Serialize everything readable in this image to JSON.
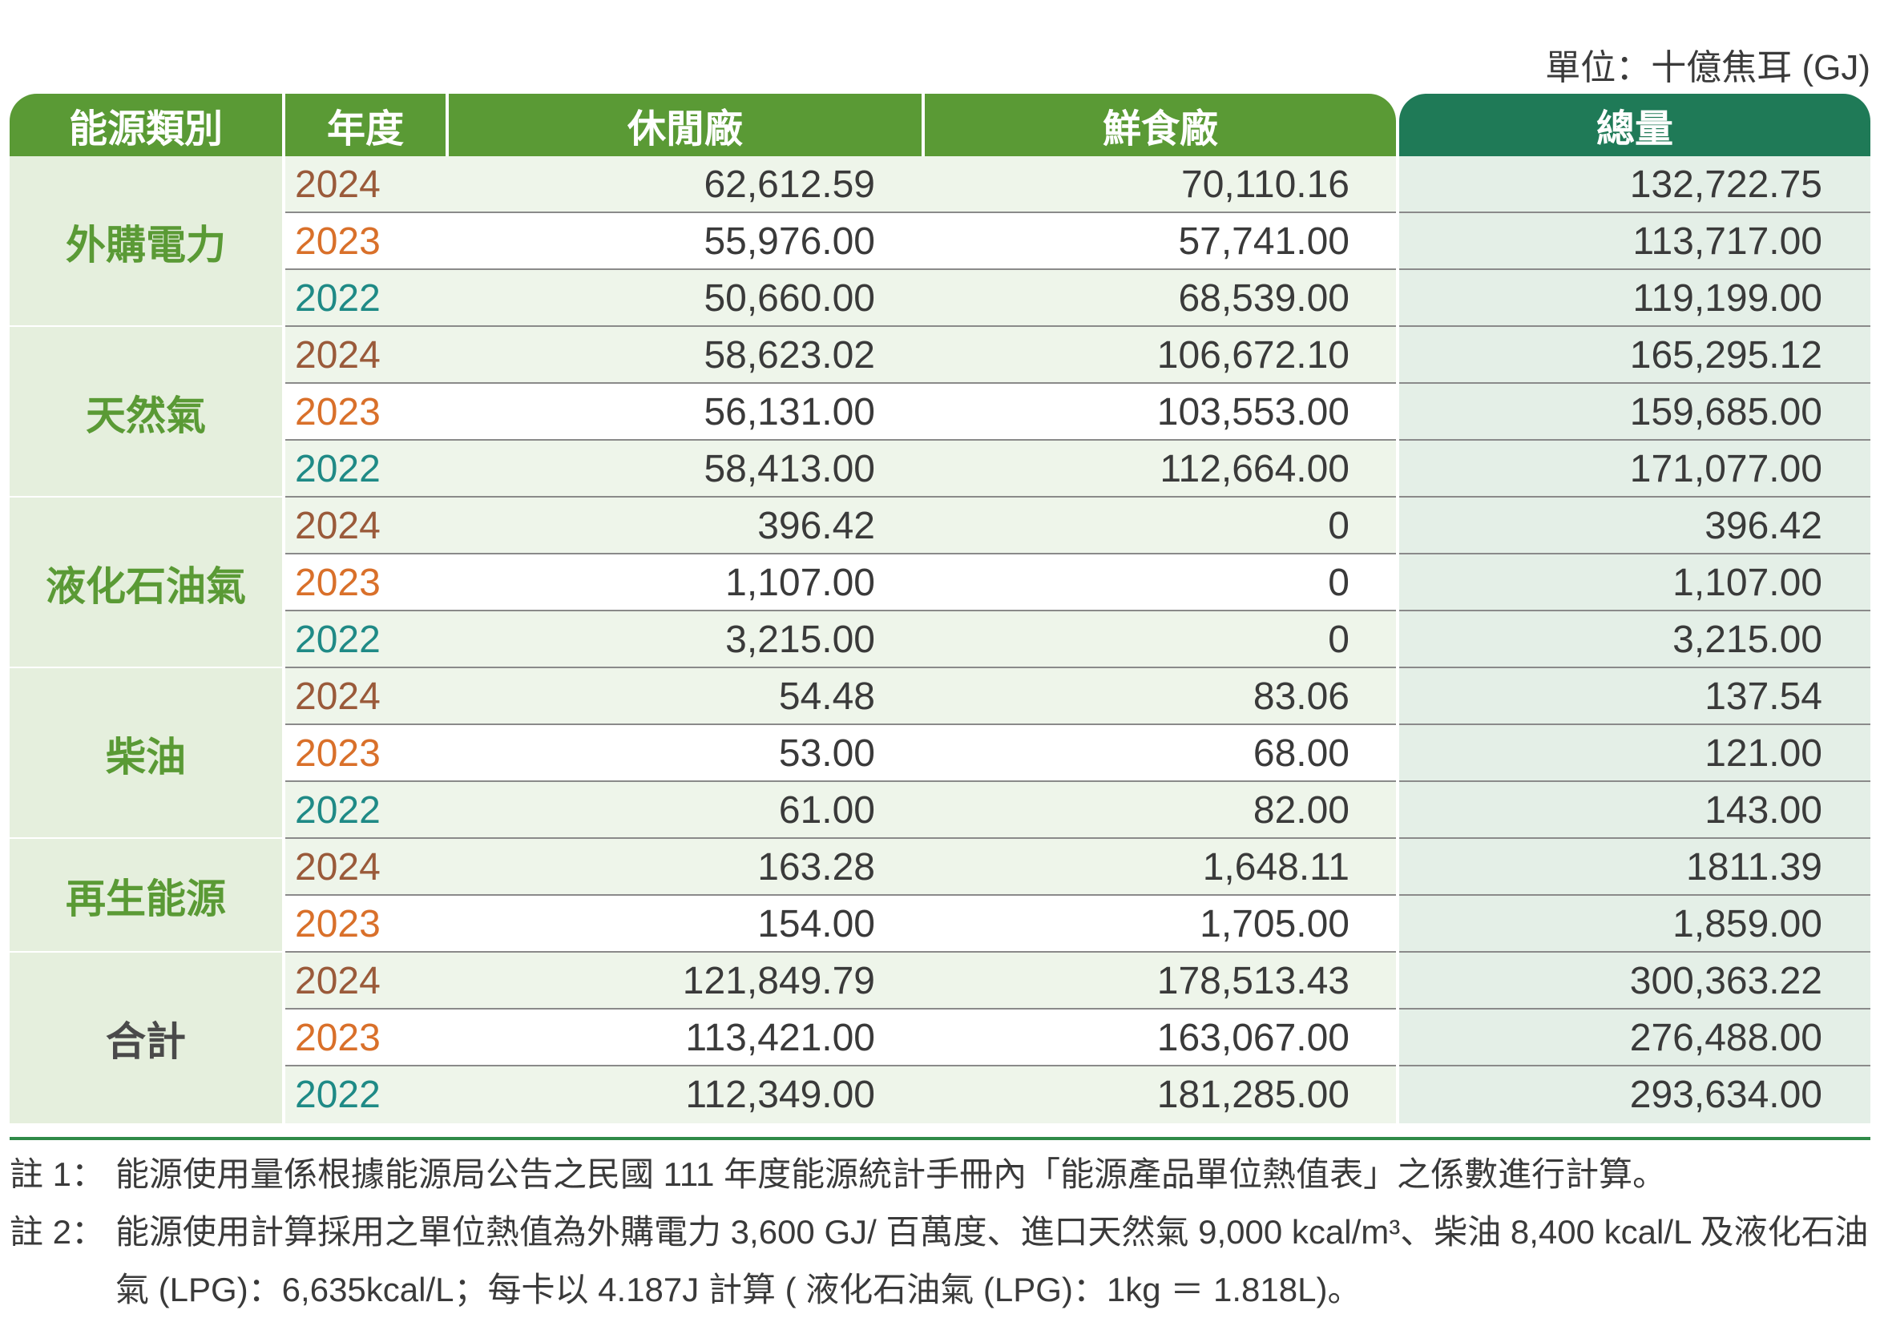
{
  "unit_label": "單位：十億焦耳 (GJ)",
  "headers": {
    "category": "能源類別",
    "year": "年度",
    "col_a": "休閒廠",
    "col_b": "鮮食廠",
    "total": "總量"
  },
  "groups": [
    {
      "category": "外購電力",
      "rows": [
        {
          "year": "2024",
          "a": "62,612.59",
          "b": "70,110.16",
          "total": "132,722.75"
        },
        {
          "year": "2023",
          "a": "55,976.00",
          "b": "57,741.00",
          "total": "113,717.00"
        },
        {
          "year": "2022",
          "a": "50,660.00",
          "b": "68,539.00",
          "total": "119,199.00"
        }
      ]
    },
    {
      "category": "天然氣",
      "rows": [
        {
          "year": "2024",
          "a": "58,623.02",
          "b": "106,672.10",
          "total": "165,295.12"
        },
        {
          "year": "2023",
          "a": "56,131.00",
          "b": "103,553.00",
          "total": "159,685.00"
        },
        {
          "year": "2022",
          "a": "58,413.00",
          "b": "112,664.00",
          "total": "171,077.00"
        }
      ]
    },
    {
      "category": "液化石油氣",
      "rows": [
        {
          "year": "2024",
          "a": "396.42",
          "b": "0",
          "total": "396.42"
        },
        {
          "year": "2023",
          "a": "1,107.00",
          "b": "0",
          "total": "1,107.00"
        },
        {
          "year": "2022",
          "a": "3,215.00",
          "b": "0",
          "total": "3,215.00"
        }
      ]
    },
    {
      "category": "柴油",
      "rows": [
        {
          "year": "2024",
          "a": "54.48",
          "b": "83.06",
          "total": "137.54"
        },
        {
          "year": "2023",
          "a": "53.00",
          "b": "68.00",
          "total": "121.00"
        },
        {
          "year": "2022",
          "a": "61.00",
          "b": "82.00",
          "total": "143.00"
        }
      ]
    },
    {
      "category": "再生能源",
      "rows": [
        {
          "year": "2024",
          "a": "163.28",
          "b": "1,648.11",
          "total": "1811.39"
        },
        {
          "year": "2023",
          "a": "154.00",
          "b": "1,705.00",
          "total": "1,859.00"
        }
      ]
    },
    {
      "category": "合計",
      "rows": [
        {
          "year": "2024",
          "a": "121,849.79",
          "b": "178,513.43",
          "total": "300,363.22"
        },
        {
          "year": "2023",
          "a": "113,421.00",
          "b": "163,067.00",
          "total": "276,488.00"
        },
        {
          "year": "2022",
          "a": "112,349.00",
          "b": "181,285.00",
          "total": "293,634.00"
        }
      ]
    }
  ],
  "notes": [
    {
      "label": "註 1：",
      "text": "能源使用量係根據能源局公告之民國 111 年度能源統計手冊內「能源產品單位熱值表」之係數進行計算。"
    },
    {
      "label": "註 2：",
      "text": "能源使用計算採用之單位熱值為外購電力 3,600 GJ/ 百萬度、進口天然氣 9,000 kcal/m³、柴油 8,400 kcal/L 及液化石油氣 (LPG)：6,635kcal/L；每卡以 4.187J 計算 ( 液化石油氣 (LPG)：1kg ＝ 1.818L)。"
    }
  ],
  "colors": {
    "header_green": "#5a9a35",
    "header_teal": "#1f7a57",
    "category_bg": "#e5efdd",
    "year_2024": "#9a5a3a",
    "year_2023": "#d9702a",
    "year_2022": "#1f8a86"
  }
}
